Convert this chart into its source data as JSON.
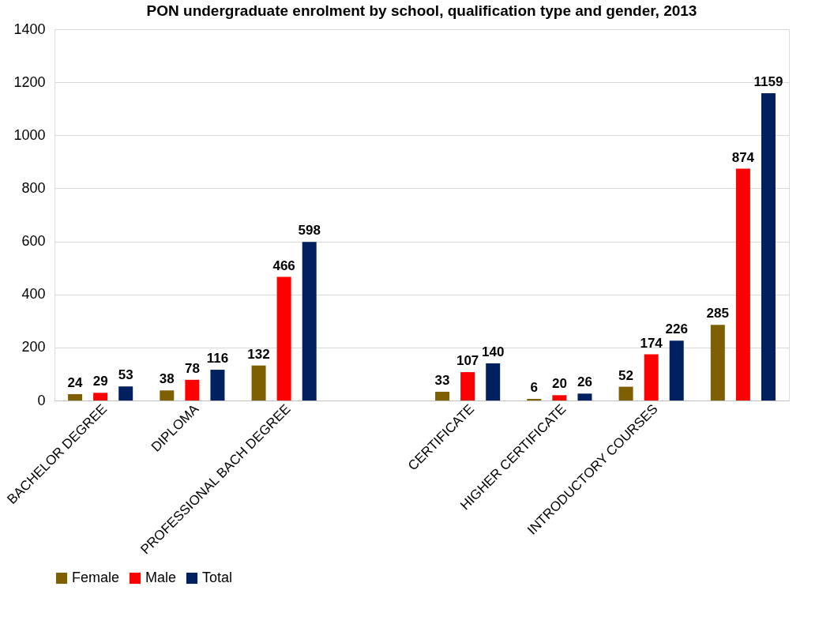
{
  "chart_data": {
    "type": "bar",
    "title": "PON undergraduate enrolment by school, qualification type and gender, 2013",
    "categories": [
      "BACHELOR DEGREE",
      "DIPLOMA",
      "PROFESSIONAL BACH DEGREE",
      null,
      "CERTIFICATE",
      "HIGHER CERTIFICATE",
      "INTRODUCTORY COURSES",
      null
    ],
    "series": [
      {
        "name": "Female",
        "color": "#7f6000",
        "values": [
          24,
          38,
          132,
          null,
          33,
          6,
          52,
          285
        ]
      },
      {
        "name": "Male",
        "color": "#ff0000",
        "values": [
          29,
          78,
          466,
          null,
          107,
          20,
          174,
          874
        ]
      },
      {
        "name": "Total",
        "color": "#002060",
        "values": [
          53,
          116,
          598,
          null,
          140,
          26,
          226,
          1159
        ]
      }
    ],
    "ylim": [
      0,
      1400
    ],
    "yticks": [
      0,
      200,
      400,
      600,
      800,
      1000,
      1200,
      1400
    ],
    "grid": "y",
    "legend": "bottom",
    "data_labels": true
  }
}
